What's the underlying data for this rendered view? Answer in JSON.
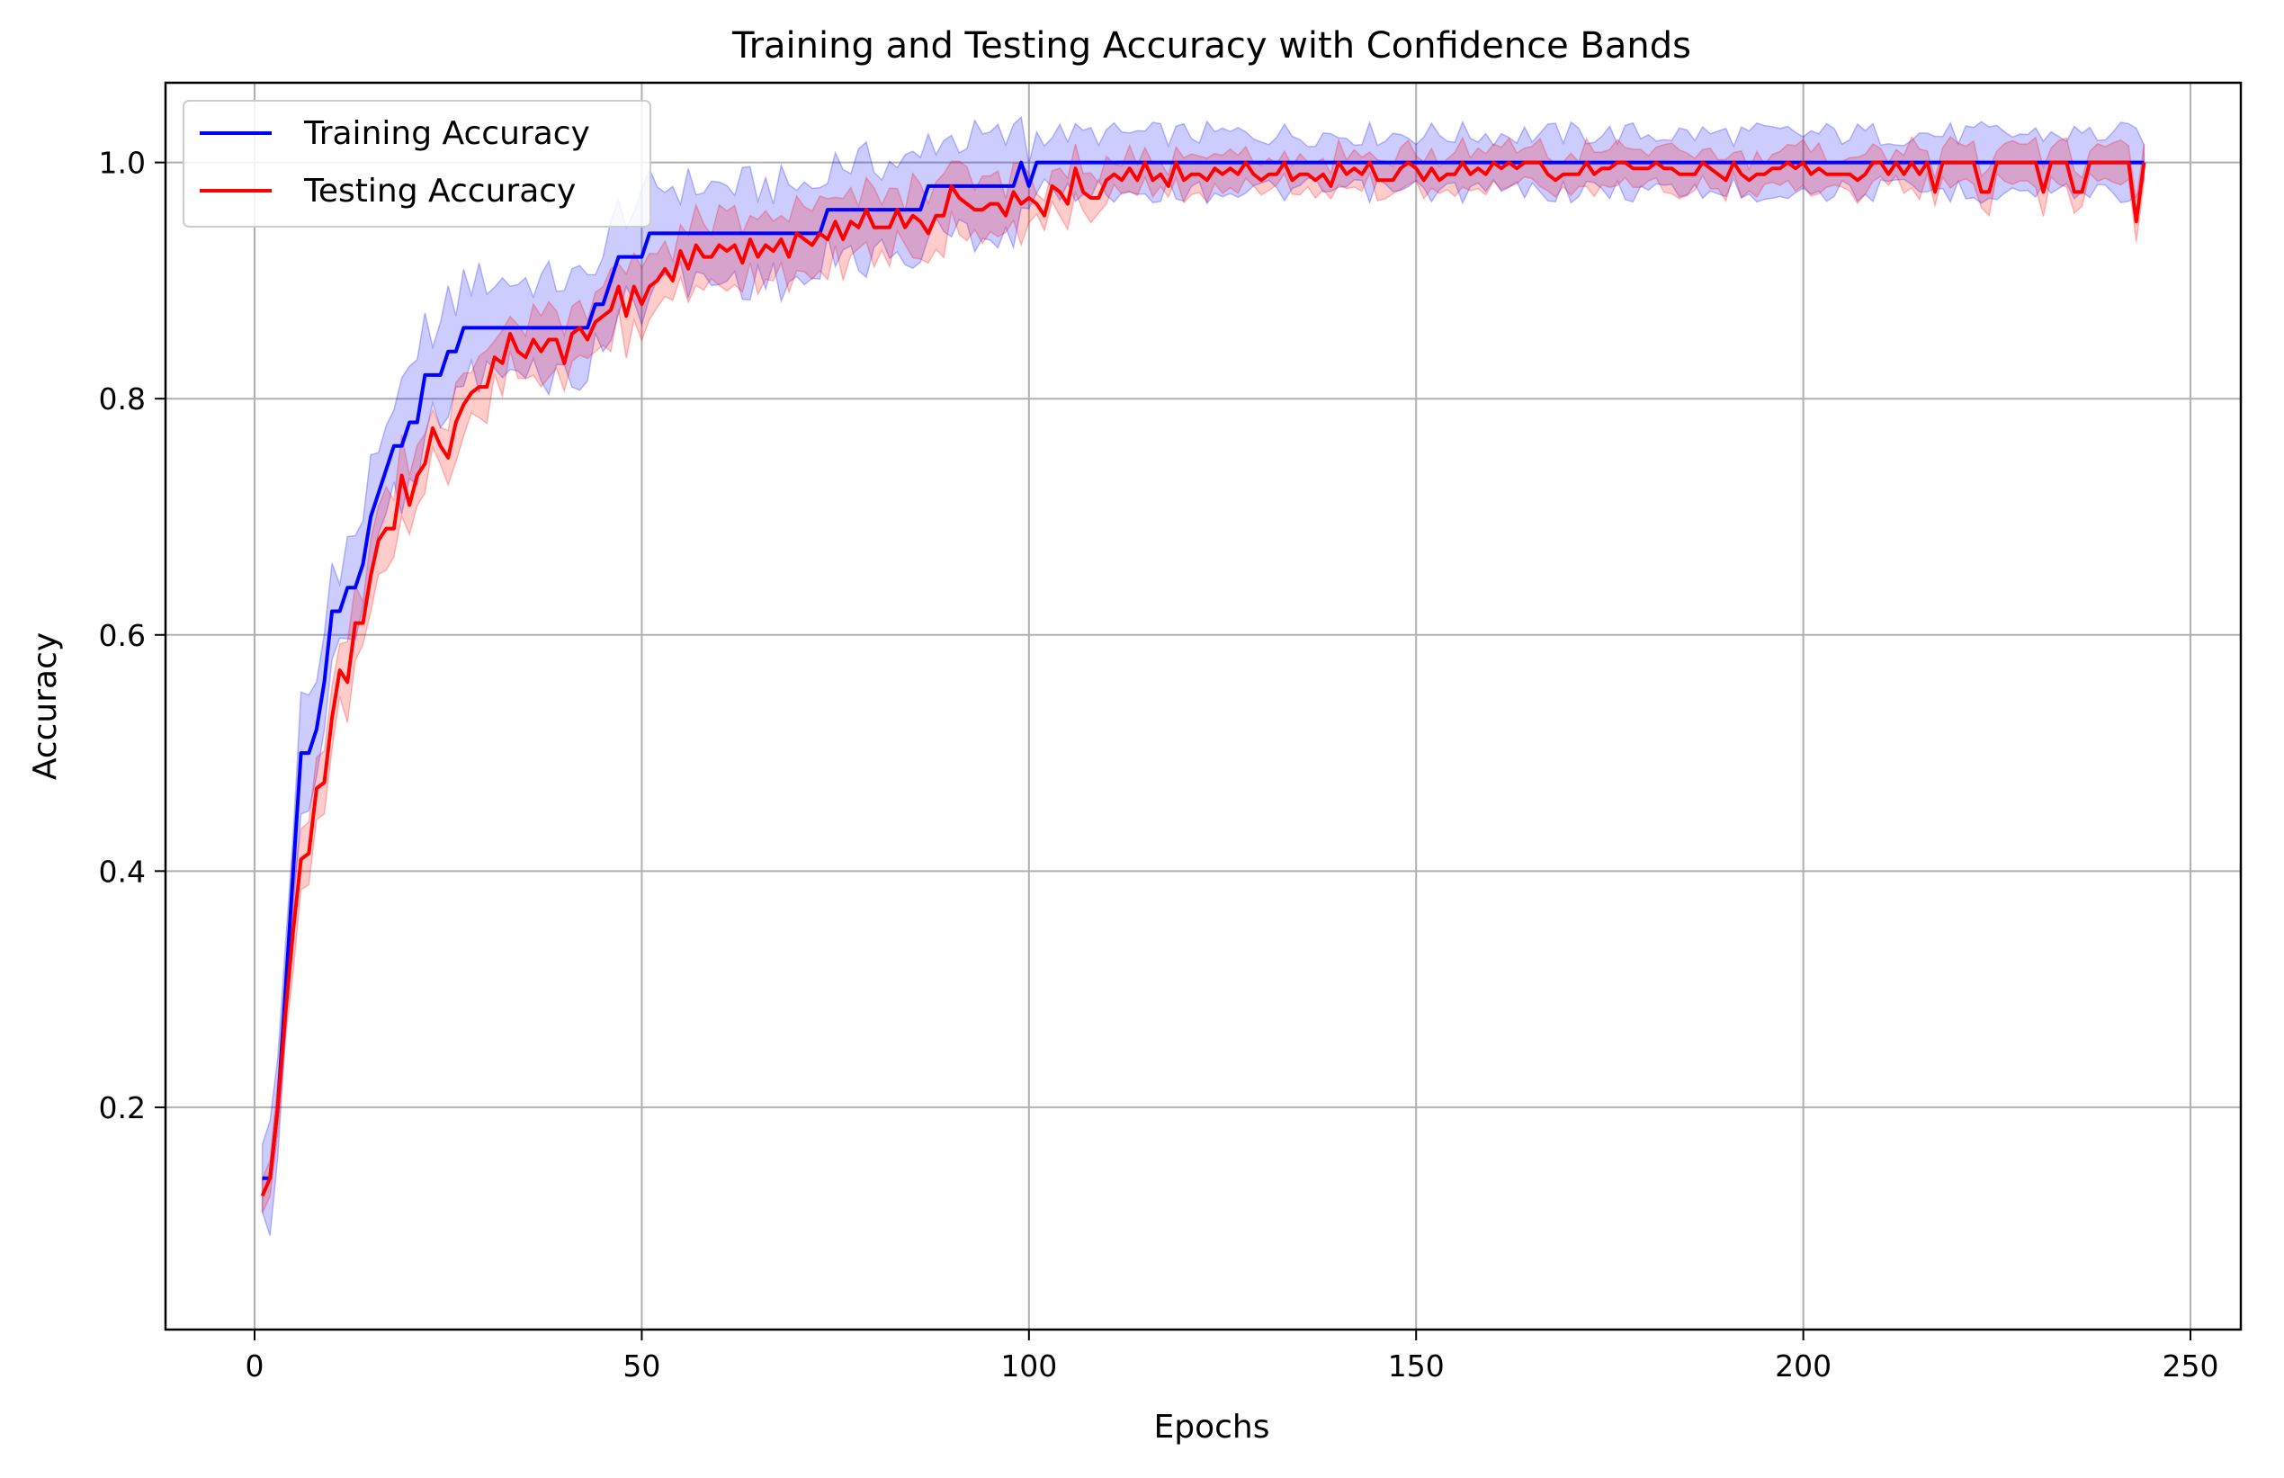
{
  "chart_data": {
    "type": "line",
    "title": "Training and Testing Accuracy with Confidence Bands",
    "xlabel": "Epochs",
    "ylabel": "Accuracy",
    "xlim": [
      -11.5,
      256.5
    ],
    "ylim": [
      0.0118,
      1.0675
    ],
    "x_ticks": [
      0,
      50,
      100,
      150,
      200,
      250
    ],
    "y_ticks": [
      0.2,
      0.4,
      0.6,
      0.8,
      1.0
    ],
    "x_tick_labels": [
      "0",
      "50",
      "100",
      "150",
      "200",
      "250"
    ],
    "y_tick_labels": [
      "0.2",
      "0.4",
      "0.6",
      "0.8",
      "1.0"
    ],
    "grid": true,
    "legend_position": "top-left",
    "colors": {
      "training": "#0000ff",
      "testing": "#ff0000",
      "training_band": "#0000ff",
      "testing_band": "#ff0000",
      "grid": "#b0b0b0"
    },
    "series": [
      {
        "name": "Training Accuracy",
        "color": "#0000ff",
        "band_halfwidth": 0.04,
        "points": [
          [
            1,
            0.14
          ],
          [
            2,
            0.14
          ],
          [
            3,
            0.2
          ],
          [
            4,
            0.3
          ],
          [
            5,
            0.4
          ],
          [
            6,
            0.5
          ],
          [
            7,
            0.5
          ],
          [
            8,
            0.52
          ],
          [
            9,
            0.56
          ],
          [
            10,
            0.62
          ],
          [
            11,
            0.62
          ],
          [
            12,
            0.64
          ],
          [
            13,
            0.64
          ],
          [
            14,
            0.66
          ],
          [
            15,
            0.7
          ],
          [
            16,
            0.72
          ],
          [
            17,
            0.74
          ],
          [
            18,
            0.76
          ],
          [
            19,
            0.76
          ],
          [
            20,
            0.78
          ],
          [
            21,
            0.78
          ],
          [
            22,
            0.82
          ],
          [
            23,
            0.82
          ],
          [
            24,
            0.82
          ],
          [
            25,
            0.84
          ],
          [
            26,
            0.84
          ],
          [
            27,
            0.86
          ],
          [
            43,
            0.86
          ],
          [
            44,
            0.88
          ],
          [
            45,
            0.88
          ],
          [
            46,
            0.9
          ],
          [
            47,
            0.92
          ],
          [
            50,
            0.92
          ],
          [
            51,
            0.94
          ],
          [
            73,
            0.94
          ],
          [
            74,
            0.96
          ],
          [
            86,
            0.96
          ],
          [
            87,
            0.98
          ],
          [
            98,
            0.98
          ],
          [
            99,
            1.0
          ],
          [
            100,
            0.98
          ],
          [
            101,
            1.0
          ],
          [
            244,
            1.0
          ]
        ]
      },
      {
        "name": "Testing Accuracy",
        "color": "#ff0000",
        "band_halfwidth": 0.025,
        "points": [
          [
            1,
            0.125
          ],
          [
            2,
            0.14
          ],
          [
            3,
            0.2
          ],
          [
            4,
            0.28
          ],
          [
            5,
            0.35
          ],
          [
            6,
            0.41
          ],
          [
            7,
            0.415
          ],
          [
            8,
            0.47
          ],
          [
            9,
            0.475
          ],
          [
            10,
            0.53
          ],
          [
            11,
            0.57
          ],
          [
            12,
            0.56
          ],
          [
            13,
            0.61
          ],
          [
            14,
            0.61
          ],
          [
            15,
            0.65
          ],
          [
            16,
            0.68
          ],
          [
            17,
            0.69
          ],
          [
            18,
            0.69
          ],
          [
            19,
            0.735
          ],
          [
            20,
            0.71
          ],
          [
            21,
            0.735
          ],
          [
            22,
            0.745
          ],
          [
            23,
            0.775
          ],
          [
            24,
            0.76
          ],
          [
            25,
            0.75
          ],
          [
            26,
            0.78
          ],
          [
            27,
            0.795
          ],
          [
            28,
            0.805
          ],
          [
            29,
            0.81
          ],
          [
            30,
            0.81
          ],
          [
            31,
            0.835
          ],
          [
            32,
            0.83
          ],
          [
            33,
            0.855
          ],
          [
            34,
            0.84
          ],
          [
            35,
            0.835
          ],
          [
            36,
            0.85
          ],
          [
            37,
            0.84
          ],
          [
            38,
            0.85
          ],
          [
            39,
            0.85
          ],
          [
            40,
            0.83
          ],
          [
            41,
            0.855
          ],
          [
            42,
            0.86
          ],
          [
            43,
            0.85
          ],
          [
            44,
            0.865
          ],
          [
            45,
            0.87
          ],
          [
            46,
            0.875
          ],
          [
            47,
            0.895
          ],
          [
            48,
            0.87
          ],
          [
            49,
            0.895
          ],
          [
            50,
            0.88
          ],
          [
            51,
            0.895
          ],
          [
            52,
            0.9
          ],
          [
            53,
            0.91
          ],
          [
            54,
            0.9
          ],
          [
            55,
            0.925
          ],
          [
            56,
            0.91
          ],
          [
            57,
            0.93
          ],
          [
            58,
            0.92
          ],
          [
            59,
            0.92
          ],
          [
            60,
            0.93
          ],
          [
            61,
            0.925
          ],
          [
            62,
            0.93
          ],
          [
            63,
            0.915
          ],
          [
            64,
            0.935
          ],
          [
            65,
            0.92
          ],
          [
            66,
            0.93
          ],
          [
            67,
            0.925
          ],
          [
            68,
            0.935
          ],
          [
            69,
            0.92
          ],
          [
            70,
            0.94
          ],
          [
            71,
            0.935
          ],
          [
            72,
            0.93
          ],
          [
            73,
            0.94
          ],
          [
            74,
            0.935
          ],
          [
            75,
            0.95
          ],
          [
            76,
            0.935
          ],
          [
            77,
            0.95
          ],
          [
            78,
            0.945
          ],
          [
            79,
            0.96
          ],
          [
            80,
            0.945
          ],
          [
            81,
            0.945
          ],
          [
            82,
            0.945
          ],
          [
            83,
            0.96
          ],
          [
            84,
            0.945
          ],
          [
            85,
            0.955
          ],
          [
            86,
            0.95
          ],
          [
            87,
            0.94
          ],
          [
            88,
            0.955
          ],
          [
            89,
            0.955
          ],
          [
            90,
            0.98
          ],
          [
            91,
            0.97
          ],
          [
            92,
            0.965
          ],
          [
            93,
            0.96
          ],
          [
            94,
            0.96
          ],
          [
            95,
            0.965
          ],
          [
            96,
            0.965
          ],
          [
            97,
            0.955
          ],
          [
            98,
            0.975
          ],
          [
            99,
            0.965
          ],
          [
            100,
            0.97
          ],
          [
            101,
            0.965
          ],
          [
            102,
            0.955
          ],
          [
            103,
            0.98
          ],
          [
            104,
            0.975
          ],
          [
            105,
            0.965
          ],
          [
            106,
            0.995
          ],
          [
            107,
            0.975
          ],
          [
            108,
            0.97
          ],
          [
            109,
            0.97
          ],
          [
            110,
            0.985
          ],
          [
            111,
            0.99
          ],
          [
            112,
            0.985
          ],
          [
            113,
            0.995
          ],
          [
            114,
            0.985
          ],
          [
            115,
            1.0
          ],
          [
            116,
            0.985
          ],
          [
            117,
            0.99
          ],
          [
            118,
            0.98
          ],
          [
            119,
            1.0
          ],
          [
            120,
            0.985
          ],
          [
            121,
            0.99
          ],
          [
            122,
            0.99
          ],
          [
            123,
            0.985
          ],
          [
            124,
            0.995
          ],
          [
            125,
            0.99
          ],
          [
            126,
            0.995
          ],
          [
            127,
            0.99
          ],
          [
            128,
            1.0
          ],
          [
            129,
            0.99
          ],
          [
            130,
            0.985
          ],
          [
            131,
            0.99
          ],
          [
            132,
            0.99
          ],
          [
            133,
            1.0
          ],
          [
            134,
            0.985
          ],
          [
            135,
            0.99
          ],
          [
            136,
            0.99
          ],
          [
            137,
            0.985
          ],
          [
            138,
            0.99
          ],
          [
            139,
            0.98
          ],
          [
            140,
            1.0
          ],
          [
            141,
            0.99
          ],
          [
            142,
            0.995
          ],
          [
            143,
            0.99
          ],
          [
            144,
            1.0
          ],
          [
            145,
            0.985
          ],
          [
            146,
            0.985
          ],
          [
            147,
            0.985
          ],
          [
            148,
            0.995
          ],
          [
            149,
            1.0
          ],
          [
            150,
            0.995
          ],
          [
            151,
            0.985
          ],
          [
            152,
            0.995
          ],
          [
            153,
            0.985
          ],
          [
            154,
            0.99
          ],
          [
            155,
            0.99
          ],
          [
            156,
            1.0
          ],
          [
            157,
            0.99
          ],
          [
            158,
            0.995
          ],
          [
            159,
            0.99
          ],
          [
            160,
            1.0
          ],
          [
            161,
            0.995
          ],
          [
            162,
            1.0
          ],
          [
            163,
            0.995
          ],
          [
            164,
            1.0
          ],
          [
            165,
            1.0
          ],
          [
            166,
            1.0
          ],
          [
            167,
            0.99
          ],
          [
            168,
            0.985
          ],
          [
            169,
            0.99
          ],
          [
            170,
            0.99
          ],
          [
            171,
            0.99
          ],
          [
            172,
            1.0
          ],
          [
            173,
            0.99
          ],
          [
            174,
            0.995
          ],
          [
            175,
            0.995
          ],
          [
            176,
            1.0
          ],
          [
            177,
            1.0
          ],
          [
            178,
            0.995
          ],
          [
            179,
            0.995
          ],
          [
            180,
            0.995
          ],
          [
            181,
            1.0
          ],
          [
            182,
            0.995
          ],
          [
            183,
            0.995
          ],
          [
            184,
            0.99
          ],
          [
            185,
            0.99
          ],
          [
            186,
            0.99
          ],
          [
            187,
            1.0
          ],
          [
            188,
            0.995
          ],
          [
            189,
            0.99
          ],
          [
            190,
            0.985
          ],
          [
            191,
            1.0
          ],
          [
            192,
            0.99
          ],
          [
            193,
            0.985
          ],
          [
            194,
            0.99
          ],
          [
            195,
            0.99
          ],
          [
            196,
            0.995
          ],
          [
            197,
            0.995
          ],
          [
            198,
            1.0
          ],
          [
            199,
            0.995
          ],
          [
            200,
            1.0
          ],
          [
            201,
            0.99
          ],
          [
            202,
            0.995
          ],
          [
            203,
            0.99
          ],
          [
            204,
            0.99
          ],
          [
            205,
            0.99
          ],
          [
            206,
            0.99
          ],
          [
            207,
            0.985
          ],
          [
            208,
            0.99
          ],
          [
            209,
            1.0
          ],
          [
            210,
            1.0
          ],
          [
            211,
            0.99
          ],
          [
            212,
            1.0
          ],
          [
            213,
            0.99
          ],
          [
            214,
            1.0
          ],
          [
            215,
            0.99
          ],
          [
            216,
            1.0
          ],
          [
            217,
            0.975
          ],
          [
            218,
            1.0
          ],
          [
            219,
            1.0
          ],
          [
            220,
            1.0
          ],
          [
            221,
            1.0
          ],
          [
            222,
            1.0
          ],
          [
            223,
            0.975
          ],
          [
            224,
            0.975
          ],
          [
            225,
            1.0
          ],
          [
            226,
            1.0
          ],
          [
            227,
            1.0
          ],
          [
            228,
            1.0
          ],
          [
            229,
            1.0
          ],
          [
            230,
            1.0
          ],
          [
            231,
            0.975
          ],
          [
            232,
            1.0
          ],
          [
            233,
            1.0
          ],
          [
            234,
            1.0
          ],
          [
            235,
            0.975
          ],
          [
            236,
            0.975
          ],
          [
            237,
            1.0
          ],
          [
            238,
            1.0
          ],
          [
            239,
            1.0
          ],
          [
            240,
            1.0
          ],
          [
            241,
            1.0
          ],
          [
            242,
            1.0
          ],
          [
            243,
            0.95
          ],
          [
            244,
            1.0
          ]
        ]
      }
    ]
  }
}
